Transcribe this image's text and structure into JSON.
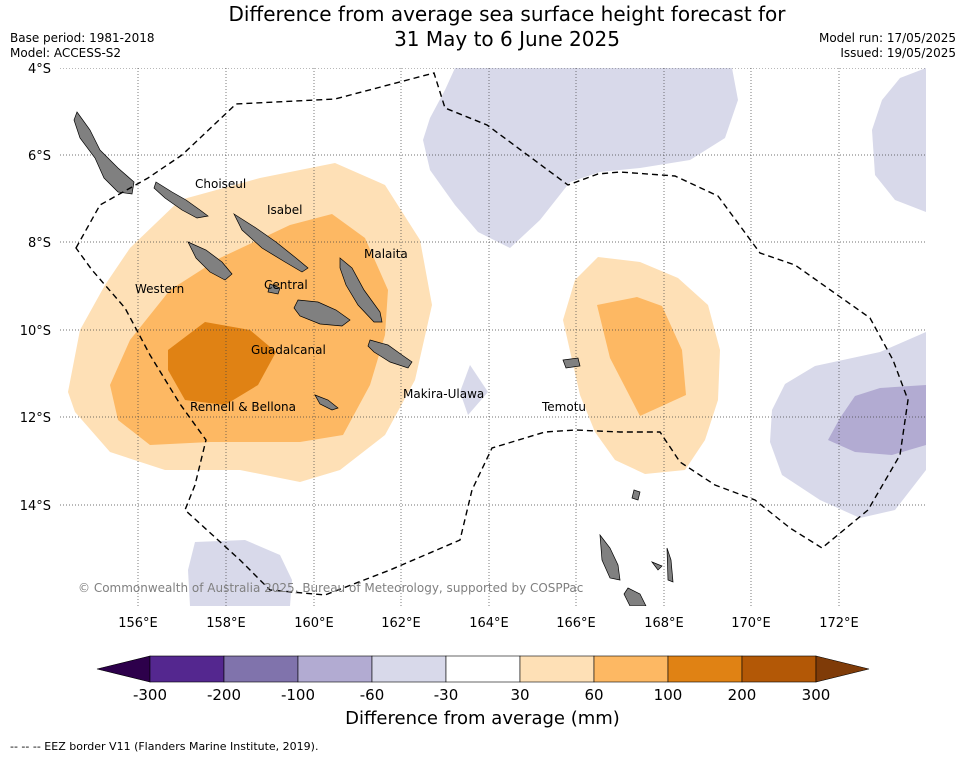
{
  "title": {
    "line1": "Difference from average sea surface height forecast for",
    "line2": "31 May to 6 June 2025"
  },
  "meta": {
    "base_period": "Base period: 1981-2018",
    "model": "Model: ACCESS-S2",
    "model_run": "Model run: 17/05/2025",
    "issued": "Issued: 19/05/2025"
  },
  "map": {
    "lat_labels": [
      "4°S",
      "6°S",
      "8°S",
      "10°S",
      "12°S",
      "14°S"
    ],
    "lon_labels": [
      "156°E",
      "158°E",
      "160°E",
      "162°E",
      "164°E",
      "166°E",
      "168°E",
      "170°E",
      "172°E"
    ],
    "places": [
      "Choiseul",
      "Isabel",
      "Malaita",
      "Western",
      "Central",
      "Guadalcanal",
      "Makira-Ulawa",
      "Rennell & Bellona",
      "Temotu"
    ],
    "copyright": "© Commonwealth of Australia 2025, Bureau of Meteorology, supported by COSPPac"
  },
  "colorbar": {
    "title": "Difference from average (mm)",
    "tick_labels": [
      "-300",
      "-200",
      "-100",
      "-60",
      "-30",
      "30",
      "60",
      "100",
      "200",
      "300"
    ],
    "colors": [
      "#54278f",
      "#8073ac",
      "#b2abd2",
      "#d8d9ea",
      "#ffffff",
      "#fee0b6",
      "#fdb863",
      "#e08214",
      "#b35806"
    ],
    "under_color": "#2d004b",
    "over_color": "#7f3b08"
  },
  "legend_note": "--  --  -- EEZ border V11 (Flanders Marine Institute, 2019)."
}
